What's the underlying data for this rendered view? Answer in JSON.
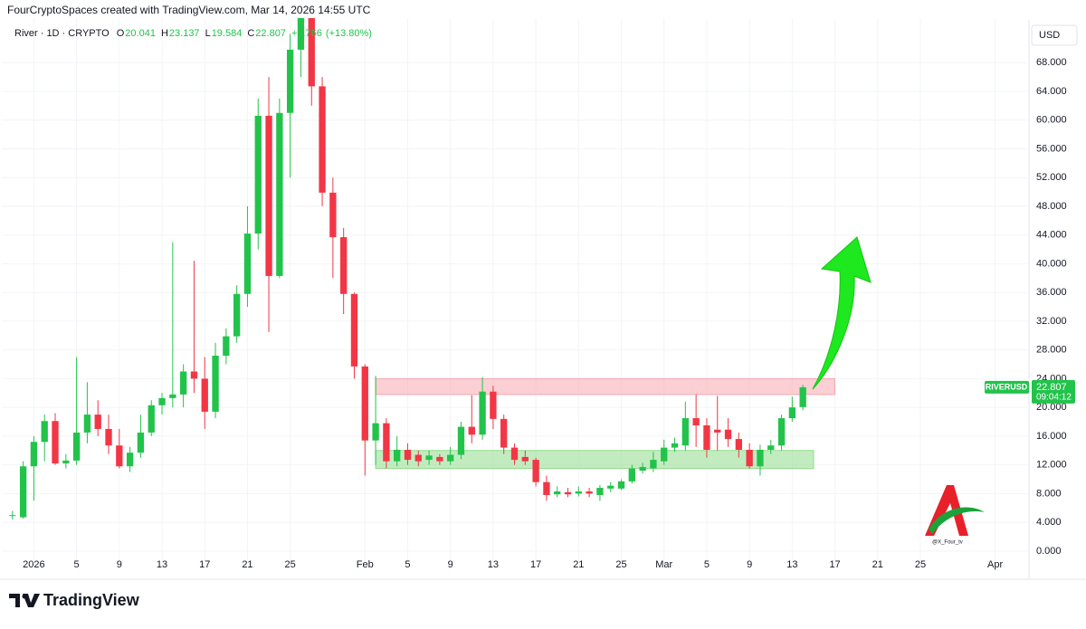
{
  "header": {
    "attribution": "FourCryptoSpaces created with TradingView.com, Mar 14, 2026 14:55 UTC",
    "symbol": "River · 1D · CRYPTO",
    "ohlc_letters": [
      "O",
      "H",
      "L",
      "C"
    ],
    "change": "+2.766",
    "change_pct": "(+13.80%)",
    "currency_button": "USD"
  },
  "price_tag": {
    "symbol": "RIVERUSD",
    "countdown": "09:04:12"
  },
  "watermark": "@X_Four_tv",
  "brand": "TradingView",
  "chart_data": {
    "type": "candlestick",
    "x": [
      "2025-12-30",
      "2025-12-31",
      "2026-01-01",
      "2026-01-02",
      "2026-01-03",
      "2026-01-04",
      "2026-01-05",
      "2026-01-06",
      "2026-01-07",
      "2026-01-08",
      "2026-01-09",
      "2026-01-10",
      "2026-01-11",
      "2026-01-12",
      "2026-01-13",
      "2026-01-14",
      "2026-01-15",
      "2026-01-16",
      "2026-01-17",
      "2026-01-18",
      "2026-01-19",
      "2026-01-20",
      "2026-01-21",
      "2026-01-22",
      "2026-01-23",
      "2026-01-24",
      "2026-01-25",
      "2026-01-26",
      "2026-01-27",
      "2026-01-28",
      "2026-01-29",
      "2026-01-30",
      "2026-01-31",
      "2026-02-01",
      "2026-02-02",
      "2026-02-03",
      "2026-02-04",
      "2026-02-05",
      "2026-02-06",
      "2026-02-07",
      "2026-02-08",
      "2026-02-09",
      "2026-02-10",
      "2026-02-11",
      "2026-02-12",
      "2026-02-13",
      "2026-02-14",
      "2026-02-15",
      "2026-02-16",
      "2026-02-17",
      "2026-02-18",
      "2026-02-19",
      "2026-02-20",
      "2026-02-21",
      "2026-02-22",
      "2026-02-23",
      "2026-02-24",
      "2026-02-25",
      "2026-02-26",
      "2026-02-27",
      "2026-02-28",
      "2026-03-01",
      "2026-03-02",
      "2026-03-03",
      "2026-03-04",
      "2026-03-05",
      "2026-03-06",
      "2026-03-07",
      "2026-03-08",
      "2026-03-09",
      "2026-03-10",
      "2026-03-11",
      "2026-03-12",
      "2026-03-13",
      "2026-03-14"
    ],
    "open": [
      5.0,
      4.7,
      11.8,
      15.2,
      18.1,
      12.2,
      12.6,
      16.5,
      19,
      17,
      14.7,
      11.8,
      13.7,
      16.5,
      20.3,
      21.3,
      21.8,
      25,
      24,
      19.4,
      27.2,
      29.9,
      35.8,
      44.2,
      60.6,
      38.3,
      61,
      69.8,
      76,
      64.7,
      49.9,
      43.7,
      35.8,
      25.7,
      15.4,
      17.8,
      12.5,
      14.1,
      13.4,
      12.7,
      13.1,
      12.5,
      13.4,
      17.3,
      16.2,
      22.2,
      18.4,
      14.4,
      13.1,
      12.7,
      9.6,
      7.9,
      8.2,
      8.0,
      8.3,
      7.8,
      8.7,
      8.7,
      9.7,
      11.2,
      11.5,
      12.5,
      14.4,
      14.7,
      18.5,
      17.5,
      16.9,
      16.9,
      15.6,
      14.1,
      11.8,
      14.1,
      14.7,
      18.5,
      20.041
    ],
    "high": [
      5.6,
      12.5,
      16,
      19,
      19.2,
      13.5,
      27,
      23.5,
      21,
      19,
      17,
      14.5,
      19,
      21,
      22,
      43,
      26,
      40.4,
      27,
      29,
      31,
      37,
      48,
      63,
      66,
      63,
      72,
      80,
      80,
      66,
      52,
      45,
      36,
      26,
      24.4,
      18.5,
      16,
      15,
      14,
      14,
      13.5,
      14.5,
      18,
      21.7,
      24.2,
      23,
      19,
      15,
      14,
      13,
      10.5,
      9,
      8.8,
      9,
      8.8,
      9.2,
      9.6,
      10,
      12,
      12.3,
      13.8,
      15.5,
      15.8,
      20.8,
      21.8,
      18.5,
      21.6,
      18.5,
      16.5,
      15,
      14.8,
      15.5,
      19,
      21.5,
      23.137
    ],
    "low": [
      4.4,
      4.5,
      7,
      12.5,
      12,
      11.5,
      12,
      15,
      16,
      13.5,
      11.5,
      11,
      13,
      16,
      19,
      20,
      20,
      22,
      17,
      18.5,
      26,
      29,
      34,
      42,
      30.5,
      38,
      52,
      66,
      62,
      48,
      38,
      33,
      24,
      10.5,
      12,
      11.5,
      11.8,
      12,
      11.8,
      12,
      12,
      12,
      12.8,
      15,
      15.5,
      17,
      13.5,
      12,
      12,
      9,
      7,
      7.5,
      7.5,
      7.6,
      7.5,
      7,
      8.2,
      8.5,
      9.4,
      10.8,
      11,
      12,
      13.8,
      14,
      14.5,
      13,
      14,
      14.5,
      13,
      11.5,
      10.5,
      13.5,
      14,
      18,
      19.584
    ],
    "close": [
      5.0,
      11.8,
      15.2,
      18.1,
      12.2,
      12.6,
      16.5,
      19,
      17,
      14.7,
      11.8,
      13.7,
      16.5,
      20.3,
      21.3,
      21.8,
      25,
      24,
      19.4,
      27.2,
      29.9,
      35.8,
      44.2,
      60.6,
      38.3,
      61,
      69.8,
      76,
      64.7,
      49.9,
      43.7,
      35.8,
      25.7,
      15.4,
      17.8,
      12.5,
      14.1,
      12.7,
      12.5,
      13.3,
      12.5,
      13.4,
      17.3,
      16.2,
      22.2,
      18.4,
      14.4,
      12.7,
      12.5,
      9.6,
      7.8,
      8.3,
      7.9,
      8.3,
      8.0,
      8.8,
      9.1,
      9.7,
      11.5,
      11.7,
      12.7,
      14.4,
      15.0,
      18.5,
      17.5,
      14.1,
      16.5,
      15.6,
      14.1,
      11.8,
      14.1,
      14.7,
      18.5,
      20.0,
      22.807
    ],
    "up_color": "#22c34b",
    "down_color": "#f23645",
    "xlim": [
      "2025-12-29",
      "2026-04-04"
    ],
    "xticks": [
      {
        "value": "2026-01-01",
        "label": "2026"
      },
      {
        "value": "2026-01-05",
        "label": "5"
      },
      {
        "value": "2026-01-09",
        "label": "9"
      },
      {
        "value": "2026-01-13",
        "label": "13"
      },
      {
        "value": "2026-01-17",
        "label": "17"
      },
      {
        "value": "2026-01-21",
        "label": "21"
      },
      {
        "value": "2026-01-25",
        "label": "25"
      },
      {
        "value": "2026-02-01",
        "label": "Feb"
      },
      {
        "value": "2026-02-05",
        "label": "5"
      },
      {
        "value": "2026-02-09",
        "label": "9"
      },
      {
        "value": "2026-02-13",
        "label": "13"
      },
      {
        "value": "2026-02-17",
        "label": "17"
      },
      {
        "value": "2026-02-21",
        "label": "21"
      },
      {
        "value": "2026-02-25",
        "label": "25"
      },
      {
        "value": "2026-03-01",
        "label": "Mar"
      },
      {
        "value": "2026-03-05",
        "label": "5"
      },
      {
        "value": "2026-03-09",
        "label": "9"
      },
      {
        "value": "2026-03-13",
        "label": "13"
      },
      {
        "value": "2026-03-17",
        "label": "17"
      },
      {
        "value": "2026-03-21",
        "label": "21"
      },
      {
        "value": "2026-03-25",
        "label": "25"
      },
      {
        "value": "2026-04-01",
        "label": "Apr"
      }
    ],
    "ylim": [
      -1.4,
      74.2
    ],
    "yticks": [
      {
        "value": 0,
        "label": "0.000"
      },
      {
        "value": 4,
        "label": "4.000"
      },
      {
        "value": 8,
        "label": "8.000"
      },
      {
        "value": 12,
        "label": "12.000"
      },
      {
        "value": 16,
        "label": "16.000"
      },
      {
        "value": 20,
        "label": "20.000"
      },
      {
        "value": 24,
        "label": "24.000"
      },
      {
        "value": 28,
        "label": "28.000"
      },
      {
        "value": 32,
        "label": "32.000"
      },
      {
        "value": 36,
        "label": "36.000"
      },
      {
        "value": 40,
        "label": "40.000"
      },
      {
        "value": 44,
        "label": "44.000"
      },
      {
        "value": 48,
        "label": "48.000"
      },
      {
        "value": 52,
        "label": "52.000"
      },
      {
        "value": 56,
        "label": "56.000"
      },
      {
        "value": 60,
        "label": "60.000"
      },
      {
        "value": 64,
        "label": "64.000"
      },
      {
        "value": 68,
        "label": "68.000"
      }
    ],
    "zones": [
      {
        "from": "2026-02-02",
        "to": "2026-03-17",
        "low": 21.8,
        "high": 24.0,
        "color": "#f7a7ae"
      },
      {
        "from": "2026-02-02",
        "to": "2026-03-15",
        "low": 11.5,
        "high": 14.0,
        "color": "#8fdc8a"
      }
    ]
  }
}
